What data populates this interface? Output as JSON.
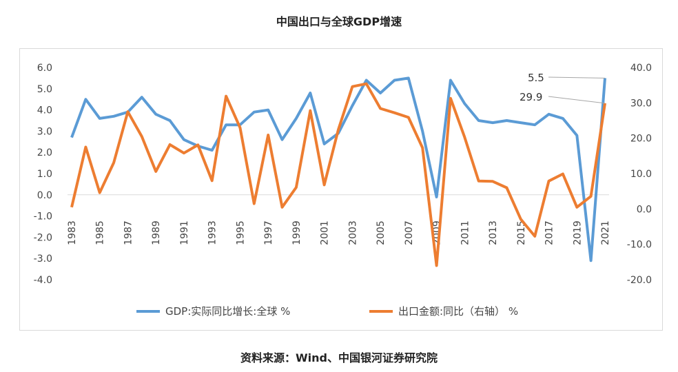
{
  "title": "中国出口与全球GDP增速",
  "source": "资料来源：Wind、中国银河证券研究院",
  "chart_data": {
    "type": "line",
    "x": [
      1983,
      1984,
      1985,
      1986,
      1987,
      1988,
      1989,
      1990,
      1991,
      1992,
      1993,
      1994,
      1995,
      1996,
      1997,
      1998,
      1999,
      2000,
      2001,
      2002,
      2003,
      2004,
      2005,
      2006,
      2007,
      2008,
      2009,
      2010,
      2011,
      2012,
      2013,
      2014,
      2015,
      2016,
      2017,
      2018,
      2019,
      2020,
      2021
    ],
    "x_tick_labels": [
      "1983",
      "1985",
      "1987",
      "1989",
      "1991",
      "1993",
      "1995",
      "1997",
      "1999",
      "2001",
      "2003",
      "2005",
      "2007",
      "2009",
      "2011",
      "2013",
      "2015",
      "2017",
      "2019",
      "2021"
    ],
    "y_left": {
      "min": -4,
      "max": 6,
      "step": 1,
      "tick_labels": [
        "6.0",
        "5.0",
        "4.0",
        "3.0",
        "2.0",
        "1.0",
        "0.0",
        "-1.0",
        "-2.0",
        "-3.0",
        "-4.0"
      ]
    },
    "y_right": {
      "min": -20,
      "max": 40,
      "step": 10,
      "tick_labels": [
        "40.0",
        "30.0",
        "20.0",
        "10.0",
        "0.0",
        "-10.0",
        "-20.0"
      ]
    },
    "series": [
      {
        "name": "GDP:实际同比增长:全球 %",
        "axis": "left",
        "color": "#5b9bd5",
        "values": [
          2.7,
          4.5,
          3.6,
          3.7,
          3.9,
          4.6,
          3.8,
          3.5,
          2.6,
          2.3,
          2.1,
          3.3,
          3.3,
          3.9,
          4.0,
          2.6,
          3.6,
          4.8,
          2.4,
          2.9,
          4.2,
          5.4,
          4.8,
          5.4,
          5.5,
          3.0,
          -0.1,
          5.4,
          4.3,
          3.5,
          3.4,
          3.5,
          3.4,
          3.3,
          3.8,
          3.6,
          2.8,
          -3.1,
          5.5
        ]
      },
      {
        "name": "出口金额:同比（右轴） %",
        "axis": "right",
        "color": "#ed7d31",
        "values": [
          0.5,
          17.5,
          4.6,
          13.1,
          27.5,
          20.5,
          10.6,
          18.2,
          15.8,
          18.1,
          8.0,
          31.9,
          23.0,
          1.5,
          20.9,
          0.5,
          6.1,
          27.8,
          6.8,
          22.4,
          34.6,
          35.4,
          28.4,
          27.2,
          25.9,
          17.3,
          -16.0,
          31.3,
          20.3,
          7.9,
          7.8,
          6.0,
          -2.9,
          -7.7,
          7.9,
          9.9,
          0.5,
          3.6,
          29.9
        ]
      }
    ],
    "annotations": [
      {
        "text": "5.5",
        "series": 0,
        "x": 2021
      },
      {
        "text": "29.9",
        "series": 1,
        "x": 2021
      }
    ],
    "legend": "bottom",
    "grid": false
  }
}
